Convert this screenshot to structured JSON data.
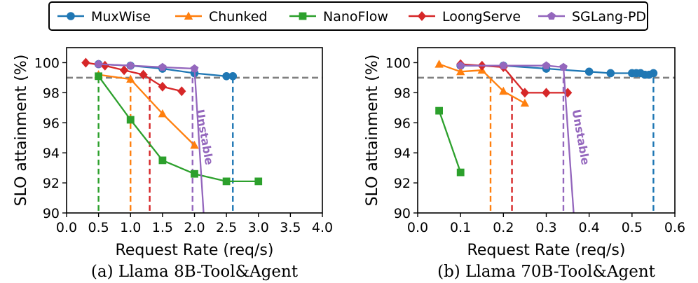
{
  "legend": {
    "entries": [
      {
        "name": "MuxWise",
        "color": "#1f77b4",
        "marker": "circle"
      },
      {
        "name": "Chunked",
        "color": "#ff7f0e",
        "marker": "triangle"
      },
      {
        "name": "NanoFlow",
        "color": "#2ca02c",
        "marker": "square"
      },
      {
        "name": "LoongServe",
        "color": "#d62728",
        "marker": "diamond"
      },
      {
        "name": "SGLang-PD",
        "color": "#9467bd",
        "marker": "pentagon"
      }
    ],
    "placement": "top-center"
  },
  "chart_data": [
    {
      "type": "line",
      "caption": "(a) Llama 8B-Tool&Agent",
      "xlabel": "Request Rate (req/s)",
      "ylabel": "SLO attainment (%)",
      "xlim": [
        0.0,
        4.0
      ],
      "ylim": [
        90,
        101
      ],
      "xticks": [
        0.0,
        0.5,
        1.0,
        1.5,
        2.0,
        2.5,
        3.0,
        3.5,
        4.0
      ],
      "xtick_labels": [
        "0.0",
        "0.5",
        "1.0",
        "1.5",
        "2.0",
        "2.5",
        "3.0",
        "3.5",
        "4.0"
      ],
      "yticks": [
        90,
        92,
        94,
        96,
        98,
        100
      ],
      "ytick_labels": [
        "90",
        "92",
        "94",
        "96",
        "98",
        "100"
      ],
      "slo_line": 99,
      "series": [
        {
          "name": "MuxWise",
          "color": "#1f77b4",
          "marker": "circle",
          "x": [
            0.5,
            1.0,
            1.5,
            2.0,
            2.5,
            2.6
          ],
          "y": [
            99.9,
            99.8,
            99.6,
            99.3,
            99.1,
            99.1
          ]
        },
        {
          "name": "Chunked",
          "color": "#ff7f0e",
          "marker": "triangle",
          "x": [
            0.5,
            1.0,
            1.5,
            2.0
          ],
          "y": [
            99.2,
            98.9,
            96.6,
            94.5
          ]
        },
        {
          "name": "NanoFlow",
          "color": "#2ca02c",
          "marker": "square",
          "x": [
            0.5,
            1.0,
            1.5,
            2.0,
            2.5,
            3.0
          ],
          "y": [
            99.1,
            96.2,
            93.5,
            92.6,
            92.1,
            92.1
          ]
        },
        {
          "name": "LoongServe",
          "color": "#d62728",
          "marker": "diamond",
          "x": [
            0.3,
            0.6,
            0.9,
            1.2,
            1.5,
            1.8
          ],
          "y": [
            100.0,
            99.8,
            99.5,
            99.2,
            98.4,
            98.1
          ]
        },
        {
          "name": "SGLang-PD",
          "color": "#9467bd",
          "marker": "pentagon",
          "x": [
            0.5,
            1.0,
            1.5,
            2.0,
            2.15
          ],
          "y": [
            99.9,
            99.8,
            99.7,
            99.6,
            89.5
          ],
          "markers": 4
        }
      ],
      "vlines": [
        {
          "x": 0.5,
          "color": "#2ca02c"
        },
        {
          "x": 1.0,
          "color": "#ff7f0e"
        },
        {
          "x": 1.3,
          "color": "#d62728"
        },
        {
          "x": 1.97,
          "color": "#9467bd"
        },
        {
          "x": 2.6,
          "color": "#1f77b4"
        }
      ],
      "annotation": {
        "text": "Unstable",
        "color": "#9467bd",
        "x": 2.1,
        "y": 95.0
      }
    },
    {
      "type": "line",
      "caption": "(b) Llama 70B-Tool&Agent",
      "xlabel": "Request Rate (req/s)",
      "ylabel": "SLO attainment (%)",
      "xlim": [
        0.0,
        0.6
      ],
      "ylim": [
        90,
        101
      ],
      "xticks": [
        0.0,
        0.1,
        0.2,
        0.3,
        0.4,
        0.5,
        0.6
      ],
      "xtick_labels": [
        "0.0",
        "0.1",
        "0.2",
        "0.3",
        "0.4",
        "0.5",
        "0.6"
      ],
      "yticks": [
        90,
        92,
        94,
        96,
        98,
        100
      ],
      "ytick_labels": [
        "90",
        "92",
        "94",
        "96",
        "98",
        "100"
      ],
      "slo_line": 99,
      "series": [
        {
          "name": "MuxWise",
          "color": "#1f77b4",
          "marker": "circle",
          "x": [
            0.1,
            0.2,
            0.3,
            0.4,
            0.45,
            0.5,
            0.51,
            0.52,
            0.53,
            0.54,
            0.55
          ],
          "y": [
            99.8,
            99.8,
            99.6,
            99.4,
            99.3,
            99.3,
            99.3,
            99.3,
            99.2,
            99.2,
            99.3
          ]
        },
        {
          "name": "Chunked",
          "color": "#ff7f0e",
          "marker": "triangle",
          "x": [
            0.05,
            0.1,
            0.15,
            0.2,
            0.25
          ],
          "y": [
            99.9,
            99.4,
            99.5,
            98.1,
            97.3
          ]
        },
        {
          "name": "NanoFlow",
          "color": "#2ca02c",
          "marker": "square",
          "x": [
            0.05,
            0.1
          ],
          "y": [
            96.8,
            92.7
          ]
        },
        {
          "name": "LoongServe",
          "color": "#d62728",
          "marker": "diamond",
          "x": [
            0.1,
            0.15,
            0.2,
            0.25,
            0.3,
            0.35
          ],
          "y": [
            99.9,
            99.8,
            99.7,
            98.0,
            98.0,
            98.0
          ]
        },
        {
          "name": "SGLang-PD",
          "color": "#9467bd",
          "marker": "pentagon",
          "x": [
            0.1,
            0.2,
            0.3,
            0.34,
            0.365
          ],
          "y": [
            99.8,
            99.8,
            99.8,
            99.7,
            89.5
          ],
          "markers": 4
        }
      ],
      "vlines": [
        {
          "x": 0.17,
          "color": "#ff7f0e"
        },
        {
          "x": 0.22,
          "color": "#d62728"
        },
        {
          "x": 0.34,
          "color": "#9467bd"
        },
        {
          "x": 0.55,
          "color": "#1f77b4"
        }
      ],
      "annotation": {
        "text": "Unstable",
        "color": "#9467bd",
        "x": 0.372,
        "y": 95.0
      }
    }
  ]
}
